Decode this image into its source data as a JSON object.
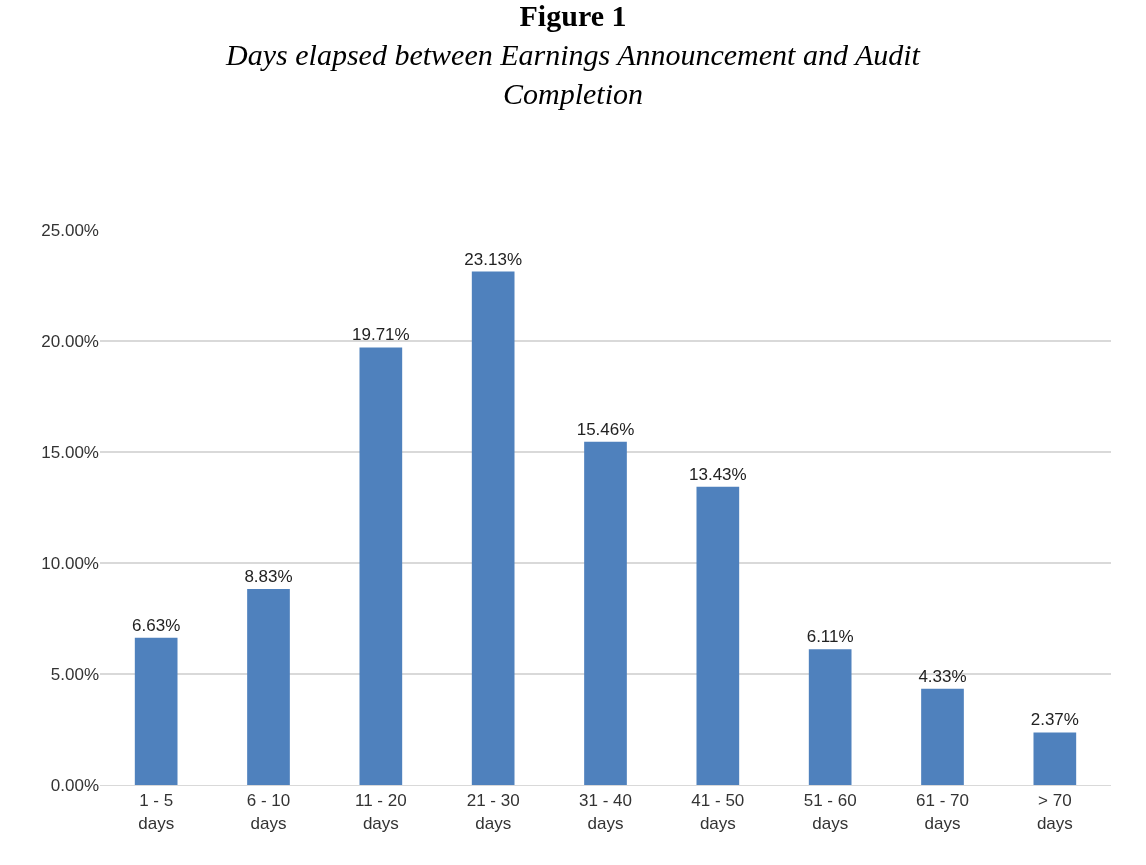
{
  "chart_data": {
    "type": "bar",
    "title": "Figure 1",
    "subtitle": "Days elapsed between Earnings Announcement and Audit Completion",
    "categories": [
      "1 - 5 days",
      "6 - 10 days",
      "11 - 20 days",
      "21 - 30 days",
      "31 - 40 days",
      "41 - 50 days",
      "51 - 60 days",
      "61 - 70 days",
      "> 70 days"
    ],
    "values": [
      6.63,
      8.83,
      19.71,
      23.13,
      15.46,
      13.43,
      6.11,
      4.33,
      2.37
    ],
    "value_labels": [
      "6.63%",
      "8.83%",
      "19.71%",
      "23.13%",
      "15.46%",
      "13.43%",
      "6.11%",
      "4.33%",
      "2.37%"
    ],
    "color": "#4f81bd",
    "ylim": [
      0,
      25
    ],
    "yticks": [
      {
        "value": 0,
        "label": "0.00%"
      },
      {
        "value": 5,
        "label": "5.00%"
      },
      {
        "value": 10,
        "label": "10.00%"
      },
      {
        "value": 15,
        "label": "15.00%"
      },
      {
        "value": 20,
        "label": "20.00%"
      },
      {
        "value": 25,
        "label": "25.00%"
      }
    ],
    "grid": "y",
    "legend": false
  }
}
